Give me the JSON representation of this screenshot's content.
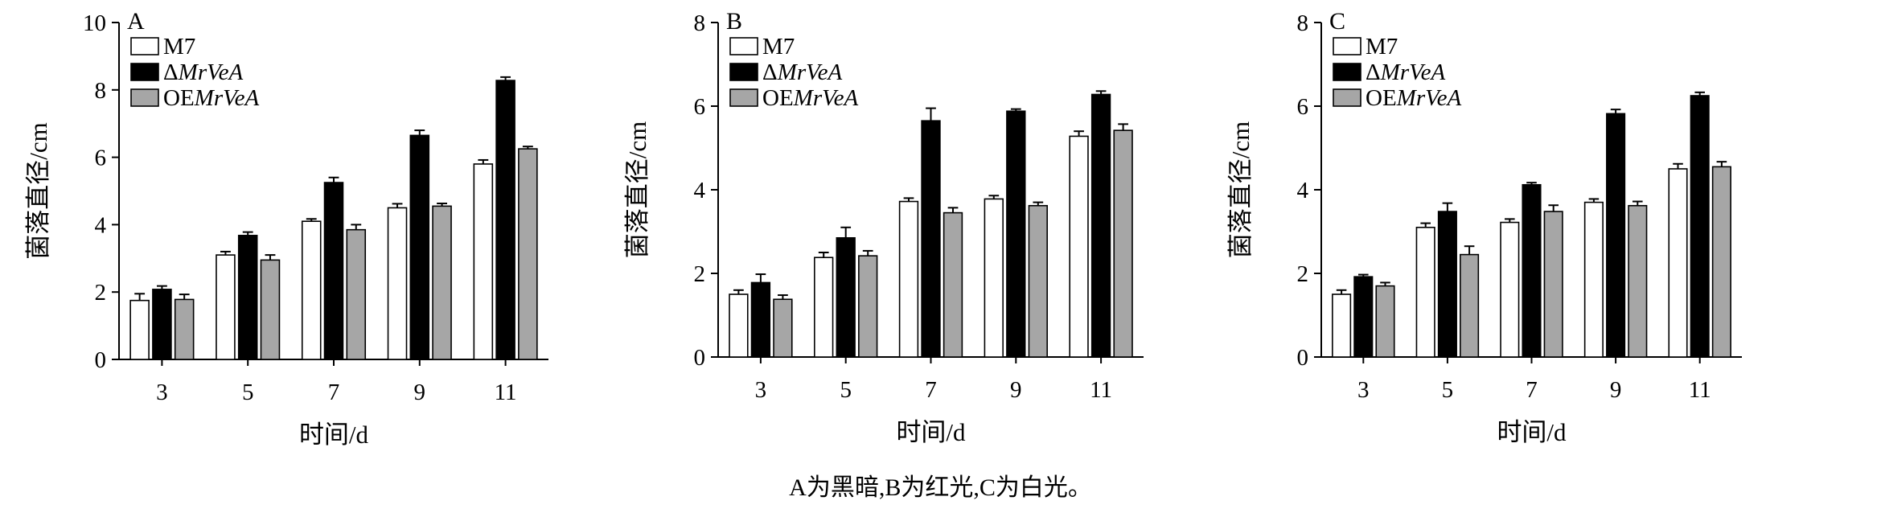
{
  "caption": "A为黑暗,B为红光,C为白光。",
  "colors": {
    "M7": "#ffffff",
    "ΔMrVeA": "#000000",
    "OEMrVeA": "#a6a6a6",
    "axis": "#000000"
  },
  "chart_data": [
    {
      "type": "bar",
      "panel": "A",
      "xlabel": "时间/d",
      "ylabel": "菌落直径/cm",
      "categories": [
        "3",
        "5",
        "7",
        "9",
        "11"
      ],
      "ylim": [
        0,
        10
      ],
      "yticks": [
        0,
        2,
        4,
        6,
        8,
        10
      ],
      "legend_position": "top-left",
      "series": [
        {
          "name": "M7",
          "legend_prefix": "M7",
          "legend_italic": "",
          "values": [
            1.75,
            3.1,
            4.1,
            4.5,
            5.8
          ],
          "errors": [
            0.2,
            0.1,
            0.07,
            0.12,
            0.12
          ]
        },
        {
          "name": "ΔMrVeA",
          "legend_prefix": "Δ",
          "legend_italic": "MrVeA",
          "values": [
            2.08,
            3.68,
            5.25,
            6.65,
            8.28
          ],
          "errors": [
            0.1,
            0.1,
            0.15,
            0.15,
            0.1
          ]
        },
        {
          "name": "OEMrVeA",
          "legend_prefix": "OE",
          "legend_italic": "MrVeA",
          "values": [
            1.78,
            2.95,
            3.85,
            4.55,
            6.25
          ],
          "errors": [
            0.15,
            0.15,
            0.15,
            0.08,
            0.07
          ]
        }
      ]
    },
    {
      "type": "bar",
      "panel": "B",
      "xlabel": "时间/d",
      "ylabel": "菌落直径/cm",
      "categories": [
        "3",
        "5",
        "7",
        "9",
        "11"
      ],
      "ylim": [
        0,
        8
      ],
      "yticks": [
        0,
        2,
        4,
        6,
        8
      ],
      "legend_position": "top-left",
      "series": [
        {
          "name": "M7",
          "legend_prefix": "M7",
          "legend_italic": "",
          "values": [
            1.5,
            2.38,
            3.72,
            3.78,
            5.28
          ],
          "errors": [
            0.1,
            0.12,
            0.08,
            0.08,
            0.12
          ]
        },
        {
          "name": "ΔMrVeA",
          "legend_prefix": "Δ",
          "legend_italic": "MrVeA",
          "values": [
            1.78,
            2.85,
            5.65,
            5.88,
            6.28
          ],
          "errors": [
            0.2,
            0.25,
            0.3,
            0.05,
            0.08
          ]
        },
        {
          "name": "OEMrVeA",
          "legend_prefix": "OE",
          "legend_italic": "MrVeA",
          "values": [
            1.38,
            2.42,
            3.45,
            3.62,
            5.42
          ],
          "errors": [
            0.1,
            0.12,
            0.12,
            0.08,
            0.15
          ]
        }
      ]
    },
    {
      "type": "bar",
      "panel": "C",
      "xlabel": "时间/d",
      "ylabel": "菌落直径/cm",
      "categories": [
        "3",
        "5",
        "7",
        "9",
        "11"
      ],
      "ylim": [
        0,
        8
      ],
      "yticks": [
        0,
        2,
        4,
        6,
        8
      ],
      "legend_position": "top-left",
      "series": [
        {
          "name": "M7",
          "legend_prefix": "M7",
          "legend_italic": "",
          "values": [
            1.5,
            3.1,
            3.22,
            3.7,
            4.5
          ],
          "errors": [
            0.1,
            0.1,
            0.08,
            0.08,
            0.12
          ]
        },
        {
          "name": "ΔMrVeA",
          "legend_prefix": "Δ",
          "legend_italic": "MrVeA",
          "values": [
            1.92,
            3.48,
            4.12,
            5.82,
            6.25
          ],
          "errors": [
            0.05,
            0.2,
            0.05,
            0.1,
            0.08
          ]
        },
        {
          "name": "OEMrVeA",
          "legend_prefix": "OE",
          "legend_italic": "MrVeA",
          "values": [
            1.7,
            2.45,
            3.48,
            3.62,
            4.55
          ],
          "errors": [
            0.08,
            0.2,
            0.15,
            0.1,
            0.12
          ]
        }
      ]
    }
  ]
}
